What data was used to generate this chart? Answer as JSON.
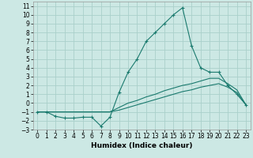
{
  "xlabel": "Humidex (Indice chaleur)",
  "background_color": "#cce8e4",
  "grid_color": "#aad0ca",
  "line_color": "#1a7a6e",
  "xlim": [
    -0.5,
    23.5
  ],
  "ylim": [
    -3,
    11.5
  ],
  "xticks": [
    0,
    1,
    2,
    3,
    4,
    5,
    6,
    7,
    8,
    9,
    10,
    11,
    12,
    13,
    14,
    15,
    16,
    17,
    18,
    19,
    20,
    21,
    22,
    23
  ],
  "yticks": [
    -3,
    -2,
    -1,
    0,
    1,
    2,
    3,
    4,
    5,
    6,
    7,
    8,
    9,
    10,
    11
  ],
  "series1_x": [
    0,
    1,
    2,
    3,
    4,
    5,
    6,
    7,
    8,
    9,
    10,
    11,
    12,
    13,
    14,
    15,
    16,
    17,
    18,
    19,
    20,
    21,
    22,
    23
  ],
  "series1_y": [
    -1,
    -1,
    -1.5,
    -1.7,
    -1.7,
    -1.6,
    -1.6,
    -2.6,
    -1.6,
    1.2,
    3.5,
    5,
    7,
    8,
    9,
    10,
    10.8,
    6.5,
    4,
    3.5,
    3.5,
    2,
    1,
    -0.2
  ],
  "series2_x": [
    0,
    1,
    2,
    3,
    4,
    5,
    6,
    7,
    8,
    9,
    10,
    11,
    12,
    13,
    14,
    15,
    16,
    17,
    18,
    19,
    20,
    21,
    22,
    23
  ],
  "series2_y": [
    -1,
    -1,
    -1,
    -1,
    -1,
    -1,
    -1,
    -1,
    -1,
    -0.5,
    0,
    0.3,
    0.7,
    1.0,
    1.4,
    1.7,
    2.0,
    2.2,
    2.5,
    2.8,
    2.8,
    2.2,
    1.5,
    -0.2
  ],
  "series3_x": [
    0,
    1,
    2,
    3,
    4,
    5,
    6,
    7,
    8,
    9,
    10,
    11,
    12,
    13,
    14,
    15,
    16,
    17,
    18,
    19,
    20,
    21,
    22,
    23
  ],
  "series3_y": [
    -1,
    -1,
    -1,
    -1,
    -1,
    -1,
    -1,
    -1,
    -1,
    -0.8,
    -0.5,
    -0.2,
    0.1,
    0.4,
    0.7,
    1.0,
    1.3,
    1.5,
    1.8,
    2.0,
    2.2,
    1.8,
    1.2,
    -0.2
  ],
  "xlabel_fontsize": 6.5,
  "tick_fontsize": 5.5
}
